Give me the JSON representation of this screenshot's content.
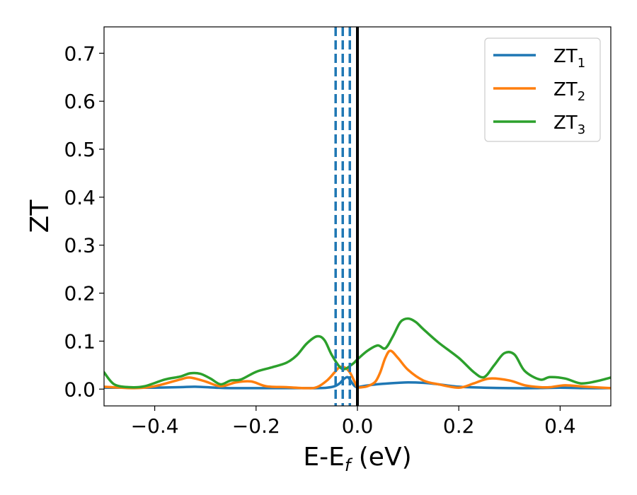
{
  "chart_data": {
    "type": "line",
    "xlabel": {
      "main": "E-E",
      "sub": "f",
      "rest": " (eV)"
    },
    "ylabel": "ZT",
    "xlim": [
      -0.5,
      0.5
    ],
    "ylim": [
      -0.035,
      0.755
    ],
    "xticks": [
      {
        "value": -0.4,
        "label": "−0.4"
      },
      {
        "value": -0.2,
        "label": "−0.2"
      },
      {
        "value": 0.0,
        "label": "0.0"
      },
      {
        "value": 0.2,
        "label": "0.2"
      },
      {
        "value": 0.4,
        "label": "0.4"
      }
    ],
    "yticks": [
      {
        "value": 0.0,
        "label": "0.0"
      },
      {
        "value": 0.1,
        "label": "0.1"
      },
      {
        "value": 0.2,
        "label": "0.2"
      },
      {
        "value": 0.3,
        "label": "0.3"
      },
      {
        "value": 0.4,
        "label": "0.4"
      },
      {
        "value": 0.5,
        "label": "0.5"
      },
      {
        "value": 0.6,
        "label": "0.6"
      },
      {
        "value": 0.7,
        "label": "0.7"
      }
    ],
    "grid": false,
    "legend_position": "top-right",
    "vertical_lines": [
      {
        "x": 0.0,
        "color": "#000000",
        "style": "solid"
      },
      {
        "x": -0.043,
        "color": "#1f77b4",
        "style": "dashed"
      },
      {
        "x": -0.029,
        "color": "#1f77b4",
        "style": "dashed"
      },
      {
        "x": -0.015,
        "color": "#1f77b4",
        "style": "dashed"
      }
    ],
    "series": [
      {
        "name": "ZT",
        "sub": "1",
        "color": "#1f77b4",
        "x": [
          -0.5,
          -0.45,
          -0.4,
          -0.35,
          -0.32,
          -0.28,
          -0.25,
          -0.2,
          -0.15,
          -0.1,
          -0.08,
          -0.06,
          -0.045,
          -0.035,
          -0.028,
          -0.02,
          -0.015,
          -0.01,
          -0.005,
          0.0,
          0.01,
          0.03,
          0.05,
          0.08,
          0.1,
          0.13,
          0.16,
          0.2,
          0.25,
          0.3,
          0.35,
          0.4,
          0.45,
          0.5
        ],
        "y": [
          0.003,
          0.003,
          0.003,
          0.004,
          0.005,
          0.003,
          0.002,
          0.002,
          0.002,
          0.002,
          0.002,
          0.003,
          0.006,
          0.012,
          0.02,
          0.025,
          0.02,
          0.012,
          0.006,
          0.004,
          0.006,
          0.009,
          0.011,
          0.013,
          0.014,
          0.013,
          0.01,
          0.005,
          0.003,
          0.002,
          0.002,
          0.003,
          0.002,
          0.002
        ]
      },
      {
        "name": "ZT",
        "sub": "2",
        "color": "#ff7f0e",
        "x": [
          -0.5,
          -0.44,
          -0.4,
          -0.35,
          -0.33,
          -0.3,
          -0.27,
          -0.24,
          -0.21,
          -0.18,
          -0.14,
          -0.1,
          -0.08,
          -0.06,
          -0.045,
          -0.035,
          -0.025,
          -0.015,
          -0.005,
          0.0,
          0.01,
          0.02,
          0.035,
          0.045,
          0.055,
          0.065,
          0.08,
          0.1,
          0.13,
          0.16,
          0.2,
          0.23,
          0.26,
          0.3,
          0.33,
          0.36,
          0.38,
          0.41,
          0.45,
          0.5
        ],
        "y": [
          0.005,
          0.002,
          0.006,
          0.02,
          0.024,
          0.016,
          0.006,
          0.014,
          0.016,
          0.006,
          0.004,
          0.002,
          0.004,
          0.018,
          0.035,
          0.046,
          0.045,
          0.035,
          0.014,
          0.004,
          0.004,
          0.006,
          0.015,
          0.035,
          0.065,
          0.08,
          0.065,
          0.04,
          0.018,
          0.01,
          0.003,
          0.012,
          0.022,
          0.018,
          0.008,
          0.004,
          0.004,
          0.008,
          0.005,
          0.002
        ]
      },
      {
        "name": "ZT",
        "sub": "3",
        "color": "#2ca02c",
        "x": [
          -0.5,
          -0.48,
          -0.45,
          -0.42,
          -0.38,
          -0.35,
          -0.33,
          -0.31,
          -0.29,
          -0.27,
          -0.25,
          -0.23,
          -0.2,
          -0.17,
          -0.14,
          -0.12,
          -0.1,
          -0.08,
          -0.065,
          -0.05,
          -0.03,
          -0.01,
          0.0,
          0.02,
          0.04,
          0.055,
          0.07,
          0.085,
          0.1,
          0.115,
          0.13,
          0.16,
          0.2,
          0.23,
          0.25,
          0.27,
          0.29,
          0.31,
          0.33,
          0.36,
          0.38,
          0.41,
          0.44,
          0.47,
          0.5
        ],
        "y": [
          0.035,
          0.01,
          0.004,
          0.006,
          0.02,
          0.026,
          0.033,
          0.032,
          0.022,
          0.01,
          0.018,
          0.02,
          0.036,
          0.045,
          0.055,
          0.07,
          0.095,
          0.11,
          0.102,
          0.07,
          0.042,
          0.052,
          0.062,
          0.08,
          0.091,
          0.085,
          0.11,
          0.14,
          0.147,
          0.14,
          0.125,
          0.097,
          0.065,
          0.035,
          0.025,
          0.05,
          0.075,
          0.072,
          0.038,
          0.02,
          0.025,
          0.022,
          0.012,
          0.016,
          0.024
        ]
      }
    ]
  }
}
